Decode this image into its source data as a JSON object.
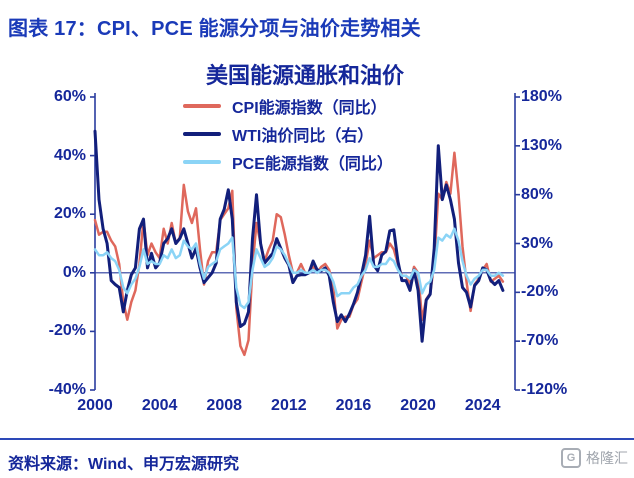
{
  "header": {
    "title": "图表 17：CPI、PCE 能源分项与油价走势相关"
  },
  "footer": {
    "source": "资料来源：Wind、申万宏源研究",
    "logo_text": "格隆汇",
    "logo_glyph": "G"
  },
  "colors": {
    "header_blue": "#1a3ab8",
    "axis_navy": "#2a3c9e",
    "text_navy": "#15279a",
    "divider_blue": "#2d49b8",
    "logo_gray": "#a0a5ad"
  },
  "chart_data": {
    "type": "line",
    "title": "美国能源通胀和油价",
    "x_start": 2000.0,
    "x_step_years": 0.25,
    "x_range": [
      2000,
      2026
    ],
    "x_ticks": [
      2000,
      2004,
      2008,
      2012,
      2016,
      2020,
      2024
    ],
    "grid": false,
    "zero_line": true,
    "legend_position": "top-center",
    "left_axis": {
      "ylim": [
        -40,
        60
      ],
      "ticks": [
        60,
        40,
        20,
        0,
        -20,
        -40
      ],
      "tick_suffix": "%"
    },
    "right_axis": {
      "ylim": [
        -120,
        180
      ],
      "ticks": [
        180,
        130,
        80,
        30,
        -20,
        -70,
        -120
      ],
      "tick_suffix": "%"
    },
    "series": [
      {
        "name": "CPI能源指数（同比）",
        "axis": "left",
        "color": "#df685c",
        "values": [
          18,
          13,
          14,
          14,
          11,
          9,
          3,
          -10,
          -16,
          -10,
          -6,
          3,
          18,
          6,
          10,
          7,
          5,
          15,
          10,
          17,
          10,
          12,
          30,
          21,
          17,
          22,
          8,
          -4,
          4,
          7,
          7,
          18,
          20,
          22,
          28,
          -12,
          -25,
          -28,
          -23,
          2,
          17,
          10,
          4,
          8,
          11,
          20,
          19,
          13,
          6,
          0,
          0,
          3,
          0,
          0,
          2,
          0,
          2,
          3,
          1,
          -5,
          -19,
          -16,
          -15,
          -15,
          -11,
          -9,
          -3,
          3,
          11,
          5,
          6,
          7,
          7,
          10,
          8,
          3,
          -1,
          -1,
          -4,
          2,
          0,
          -16,
          -9,
          -7,
          3,
          27,
          25,
          31,
          27,
          41,
          27,
          9,
          -3,
          -13,
          -4,
          -2,
          1,
          3,
          -3,
          -2,
          -1,
          -3
        ]
      },
      {
        "name": "WTI油价同比（右）",
        "axis": "right",
        "color": "#121f7b",
        "values": [
          145,
          75,
          45,
          30,
          -8,
          -12,
          -15,
          -40,
          -18,
          -2,
          5,
          45,
          55,
          5,
          20,
          5,
          10,
          30,
          35,
          45,
          30,
          35,
          45,
          30,
          15,
          25,
          5,
          -10,
          -5,
          0,
          10,
          55,
          65,
          85,
          55,
          -30,
          -55,
          -52,
          -40,
          35,
          80,
          30,
          10,
          15,
          20,
          35,
          25,
          15,
          8,
          -10,
          -3,
          -2,
          -2,
          0,
          12,
          3,
          2,
          5,
          -3,
          -30,
          -50,
          -43,
          -50,
          -42,
          -32,
          -20,
          -2,
          18,
          58,
          8,
          2,
          18,
          22,
          43,
          44,
          12,
          -8,
          -8,
          -18,
          3,
          -18,
          -70,
          -28,
          -22,
          25,
          130,
          75,
          90,
          75,
          55,
          10,
          -15,
          -20,
          -35,
          -13,
          -8,
          5,
          3,
          -8,
          -12,
          -8,
          -18
        ]
      },
      {
        "name": "PCE能源指数（同比）",
        "axis": "left",
        "color": "#8bd4f6",
        "values": [
          8,
          6,
          6,
          7,
          5,
          4,
          1,
          -5,
          -7,
          -4,
          -2,
          2,
          8,
          3,
          4,
          3,
          3,
          6,
          5,
          8,
          5,
          6,
          11,
          9,
          8,
          10,
          3,
          -2,
          2,
          3,
          4,
          8,
          9,
          10,
          12,
          -5,
          -11,
          -12,
          -10,
          1,
          8,
          5,
          2,
          3,
          5,
          9,
          8,
          6,
          3,
          0,
          0,
          1,
          0,
          0,
          1,
          0,
          1,
          1,
          0,
          -3,
          -8,
          -7,
          -7,
          -7,
          -5,
          -4,
          -1,
          1,
          5,
          2,
          2,
          3,
          3,
          5,
          4,
          1,
          -1,
          -1,
          -2,
          1,
          0,
          -7,
          -4,
          -3,
          1,
          12,
          11,
          13,
          12,
          15,
          11,
          4,
          -1,
          -4,
          -2,
          -1,
          1,
          1,
          -1,
          -1,
          0,
          -1
        ]
      }
    ]
  }
}
